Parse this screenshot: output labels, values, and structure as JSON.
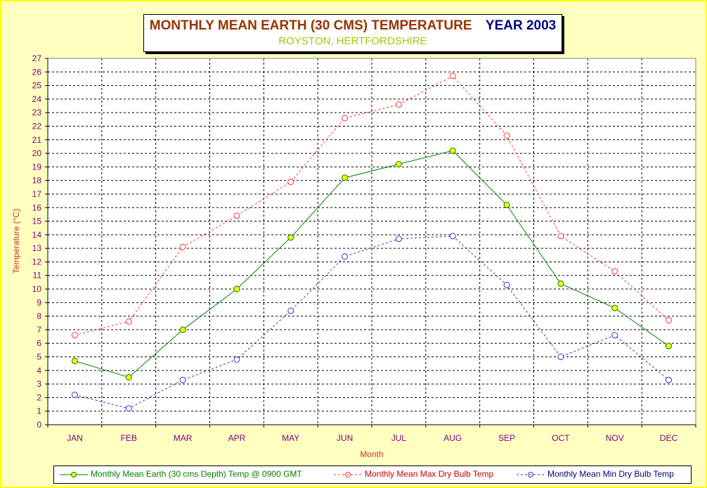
{
  "title": {
    "main": "MONTHLY MEAN  EARTH (30 CMS) TEMPERATURE",
    "year": "YEAR 2003",
    "subtitle": "ROYSTON, HERTFORDSHIRE"
  },
  "colors": {
    "background": "#ffffc0",
    "border": "#ffff00",
    "earth": "#008000",
    "earth_marker": "#ffff00",
    "max": "#ff3333",
    "min": "#3333cc",
    "axis_text": "#800080",
    "axis_title": "#cc3333"
  },
  "chart_data": {
    "type": "line",
    "title": "MONTHLY MEAN  EARTH (30 CMS) TEMPERATURE   YEAR 2003",
    "subtitle": "ROYSTON, HERTFORDSHIRE",
    "xlabel": "Month",
    "ylabel": "Temperature (°C)",
    "ylim": [
      0,
      27
    ],
    "ytick_step": 1,
    "grid": true,
    "legend_position": "bottom",
    "categories": [
      "JAN",
      "FEB",
      "MAR",
      "APR",
      "MAY",
      "JUN",
      "JUL",
      "AUG",
      "SEP",
      "OCT",
      "NOV",
      "DEC"
    ],
    "series": [
      {
        "name": "Monthly Mean Earth (30 cms Depth) Temp @ 0900 GMT",
        "style": "solid",
        "color": "#008000",
        "values": [
          4.7,
          3.5,
          7.0,
          10.0,
          13.8,
          18.2,
          19.2,
          20.2,
          16.2,
          10.4,
          8.6,
          5.8
        ]
      },
      {
        "name": "Monthly Mean Max Dry Bulb Temp",
        "style": "dashed",
        "color": "#ff3333",
        "values": [
          6.6,
          7.6,
          13.1,
          15.4,
          17.9,
          22.6,
          23.6,
          25.7,
          21.3,
          13.9,
          11.3,
          7.7
        ]
      },
      {
        "name": "Monthly Mean Min Dry Bulb Temp",
        "style": "dashed",
        "color": "#3333cc",
        "values": [
          2.2,
          1.2,
          3.3,
          4.8,
          8.4,
          12.4,
          13.7,
          13.9,
          10.3,
          5.0,
          6.6,
          3.3
        ]
      }
    ]
  }
}
